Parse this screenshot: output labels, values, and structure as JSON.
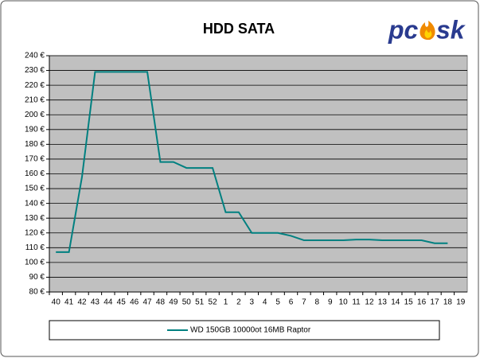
{
  "chart_data": {
    "type": "line",
    "title": "HDD SATA",
    "logo": [
      "pc",
      "sk"
    ],
    "categories": [
      "40",
      "41",
      "42",
      "43",
      "44",
      "45",
      "46",
      "47",
      "48",
      "49",
      "50",
      "51",
      "52",
      "1",
      "2",
      "3",
      "4",
      "5",
      "6",
      "7",
      "8",
      "9",
      "10",
      "11",
      "12",
      "13",
      "14",
      "15",
      "16",
      "17",
      "18",
      "19"
    ],
    "series": [
      {
        "name": "WD 150GB 10000ot 16MB Raptor",
        "color": "#008080",
        "values": [
          107,
          107,
          158,
          229,
          229,
          229,
          229,
          229,
          168,
          168,
          164,
          164,
          164,
          134,
          134,
          120,
          120,
          120,
          118,
          115,
          115,
          115,
          115,
          115.5,
          115.5,
          115,
          115,
          115,
          115,
          113,
          113,
          null
        ]
      }
    ],
    "ylim": [
      80,
      240
    ],
    "yticks": [
      {
        "value": 80,
        "label": "80 €"
      },
      {
        "value": 90,
        "label": "90 €"
      },
      {
        "value": 100,
        "label": "100 €"
      },
      {
        "value": 110,
        "label": "110 €"
      },
      {
        "value": 120,
        "label": "120 €"
      },
      {
        "value": 130,
        "label": "130 €"
      },
      {
        "value": 140,
        "label": "140 €"
      },
      {
        "value": 150,
        "label": "150 €"
      },
      {
        "value": 160,
        "label": "160 €"
      },
      {
        "value": 170,
        "label": "170 €"
      },
      {
        "value": 180,
        "label": "180 €"
      },
      {
        "value": 190,
        "label": "190 €"
      },
      {
        "value": 200,
        "label": "200 €"
      },
      {
        "value": 210,
        "label": "210 €"
      },
      {
        "value": 220,
        "label": "220 €"
      },
      {
        "value": 230,
        "label": "230 €"
      },
      {
        "value": 240,
        "label": "240 €"
      }
    ],
    "grid": true,
    "plot_background": "#c0c0c0"
  }
}
